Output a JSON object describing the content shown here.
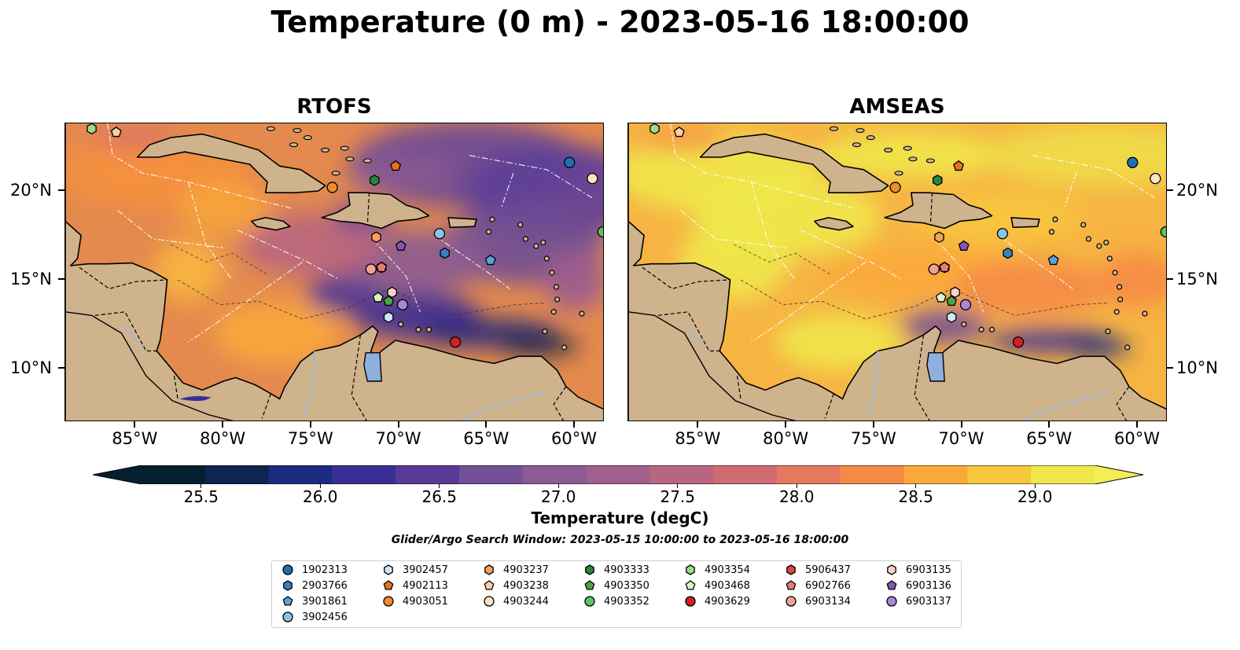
{
  "title": "Temperature (0 m) - 2023-05-16 18:00:00",
  "panels": [
    {
      "title": "RTOFS",
      "style": "rtofs"
    },
    {
      "title": "AMSEAS",
      "style": "amseas"
    }
  ],
  "axes": {
    "lon_labels": [
      "85°W",
      "80°W",
      "75°W",
      "70°W",
      "65°W",
      "60°W"
    ],
    "lat_labels": [
      "20°N",
      "15°N",
      "10°N"
    ],
    "lon_range": [
      -89,
      -58.3
    ],
    "lat_range": [
      7,
      23.8
    ]
  },
  "colorbar": {
    "label": "Temperature (degC)",
    "ticks": [
      "25.5",
      "26.0",
      "26.5",
      "27.0",
      "27.5",
      "28.0",
      "28.5",
      "29.0"
    ],
    "range": [
      25.25,
      29.25
    ],
    "colors": [
      "#04202f",
      "#0d2550",
      "#1b2b80",
      "#3a2e96",
      "#593a98",
      "#735097",
      "#8b5b92",
      "#a0608c",
      "#b86580",
      "#cf6c72",
      "#e5795f",
      "#f58a47",
      "#fba83a",
      "#f7c83e",
      "#f0e84a"
    ],
    "extend": "both"
  },
  "search_window": "Glider/Argo Search Window: 2023-05-15 10:00:00 to 2023-05-16 18:00:00",
  "floats": [
    {
      "id": "1902313",
      "marker": "circle",
      "color": "#1f6fb0",
      "lon": -60.3,
      "lat": 21.6
    },
    {
      "id": "2903766",
      "marker": "hexagon",
      "color": "#3a7fbf",
      "lon": -67.4,
      "lat": 16.5
    },
    {
      "id": "3901861",
      "marker": "pentagon",
      "color": "#5aa2dc",
      "lon": -64.8,
      "lat": 16.1
    },
    {
      "id": "3902456",
      "marker": "circle",
      "color": "#8cc2ea",
      "lon": -67.7,
      "lat": 17.6
    },
    {
      "id": "3902457",
      "marker": "hexagon",
      "color": "#cfe6f8",
      "lon": -70.6,
      "lat": 12.9
    },
    {
      "id": "4902113",
      "marker": "pentagon",
      "color": "#e8721b",
      "lon": -70.2,
      "lat": 21.4
    },
    {
      "id": "4903051",
      "marker": "circle",
      "color": "#f08a2a",
      "lon": -73.8,
      "lat": 20.2
    },
    {
      "id": "4903237",
      "marker": "hexagon",
      "color": "#f6a15a",
      "lon": -71.3,
      "lat": 17.4
    },
    {
      "id": "4903238",
      "marker": "pentagon",
      "color": "#fbcfa0",
      "lon": -86.1,
      "lat": 23.3
    },
    {
      "id": "4903244",
      "marker": "circle",
      "color": "#fde3c6",
      "lon": -59.0,
      "lat": 20.7
    },
    {
      "id": "4903333",
      "marker": "hexagon",
      "color": "#25893a",
      "lon": -71.4,
      "lat": 20.6
    },
    {
      "id": "4903350",
      "marker": "pentagon",
      "color": "#46a84b",
      "lon": -70.6,
      "lat": 13.8
    },
    {
      "id": "4903352",
      "marker": "circle",
      "color": "#61c15c",
      "lon": -58.4,
      "lat": 17.7
    },
    {
      "id": "4903354",
      "marker": "hexagon",
      "color": "#9bdc8e",
      "lon": -87.5,
      "lat": 23.5
    },
    {
      "id": "4903468",
      "marker": "pentagon",
      "color": "#d7f1c8",
      "lon": -71.2,
      "lat": 14.0
    },
    {
      "id": "4903629",
      "marker": "circle",
      "color": "#d62020",
      "lon": -66.8,
      "lat": 11.5
    },
    {
      "id": "5906437",
      "marker": "hexagon",
      "color": "#d9453f",
      "lon": -71.0,
      "lat": 15.7
    },
    {
      "id": "6902766",
      "marker": "pentagon",
      "color": "#ec7a72",
      "lon": -71.0,
      "lat": 15.7
    },
    {
      "id": "6903134",
      "marker": "circle",
      "color": "#f3a097",
      "lon": -71.6,
      "lat": 15.6
    },
    {
      "id": "6903135",
      "marker": "hexagon",
      "color": "#fad0cb",
      "lon": -70.4,
      "lat": 14.3
    },
    {
      "id": "6903136",
      "marker": "pentagon",
      "color": "#8056b4",
      "lon": -69.9,
      "lat": 16.9
    },
    {
      "id": "6903137",
      "marker": "circle",
      "color": "#a988d2",
      "lon": -69.8,
      "lat": 13.6
    }
  ]
}
